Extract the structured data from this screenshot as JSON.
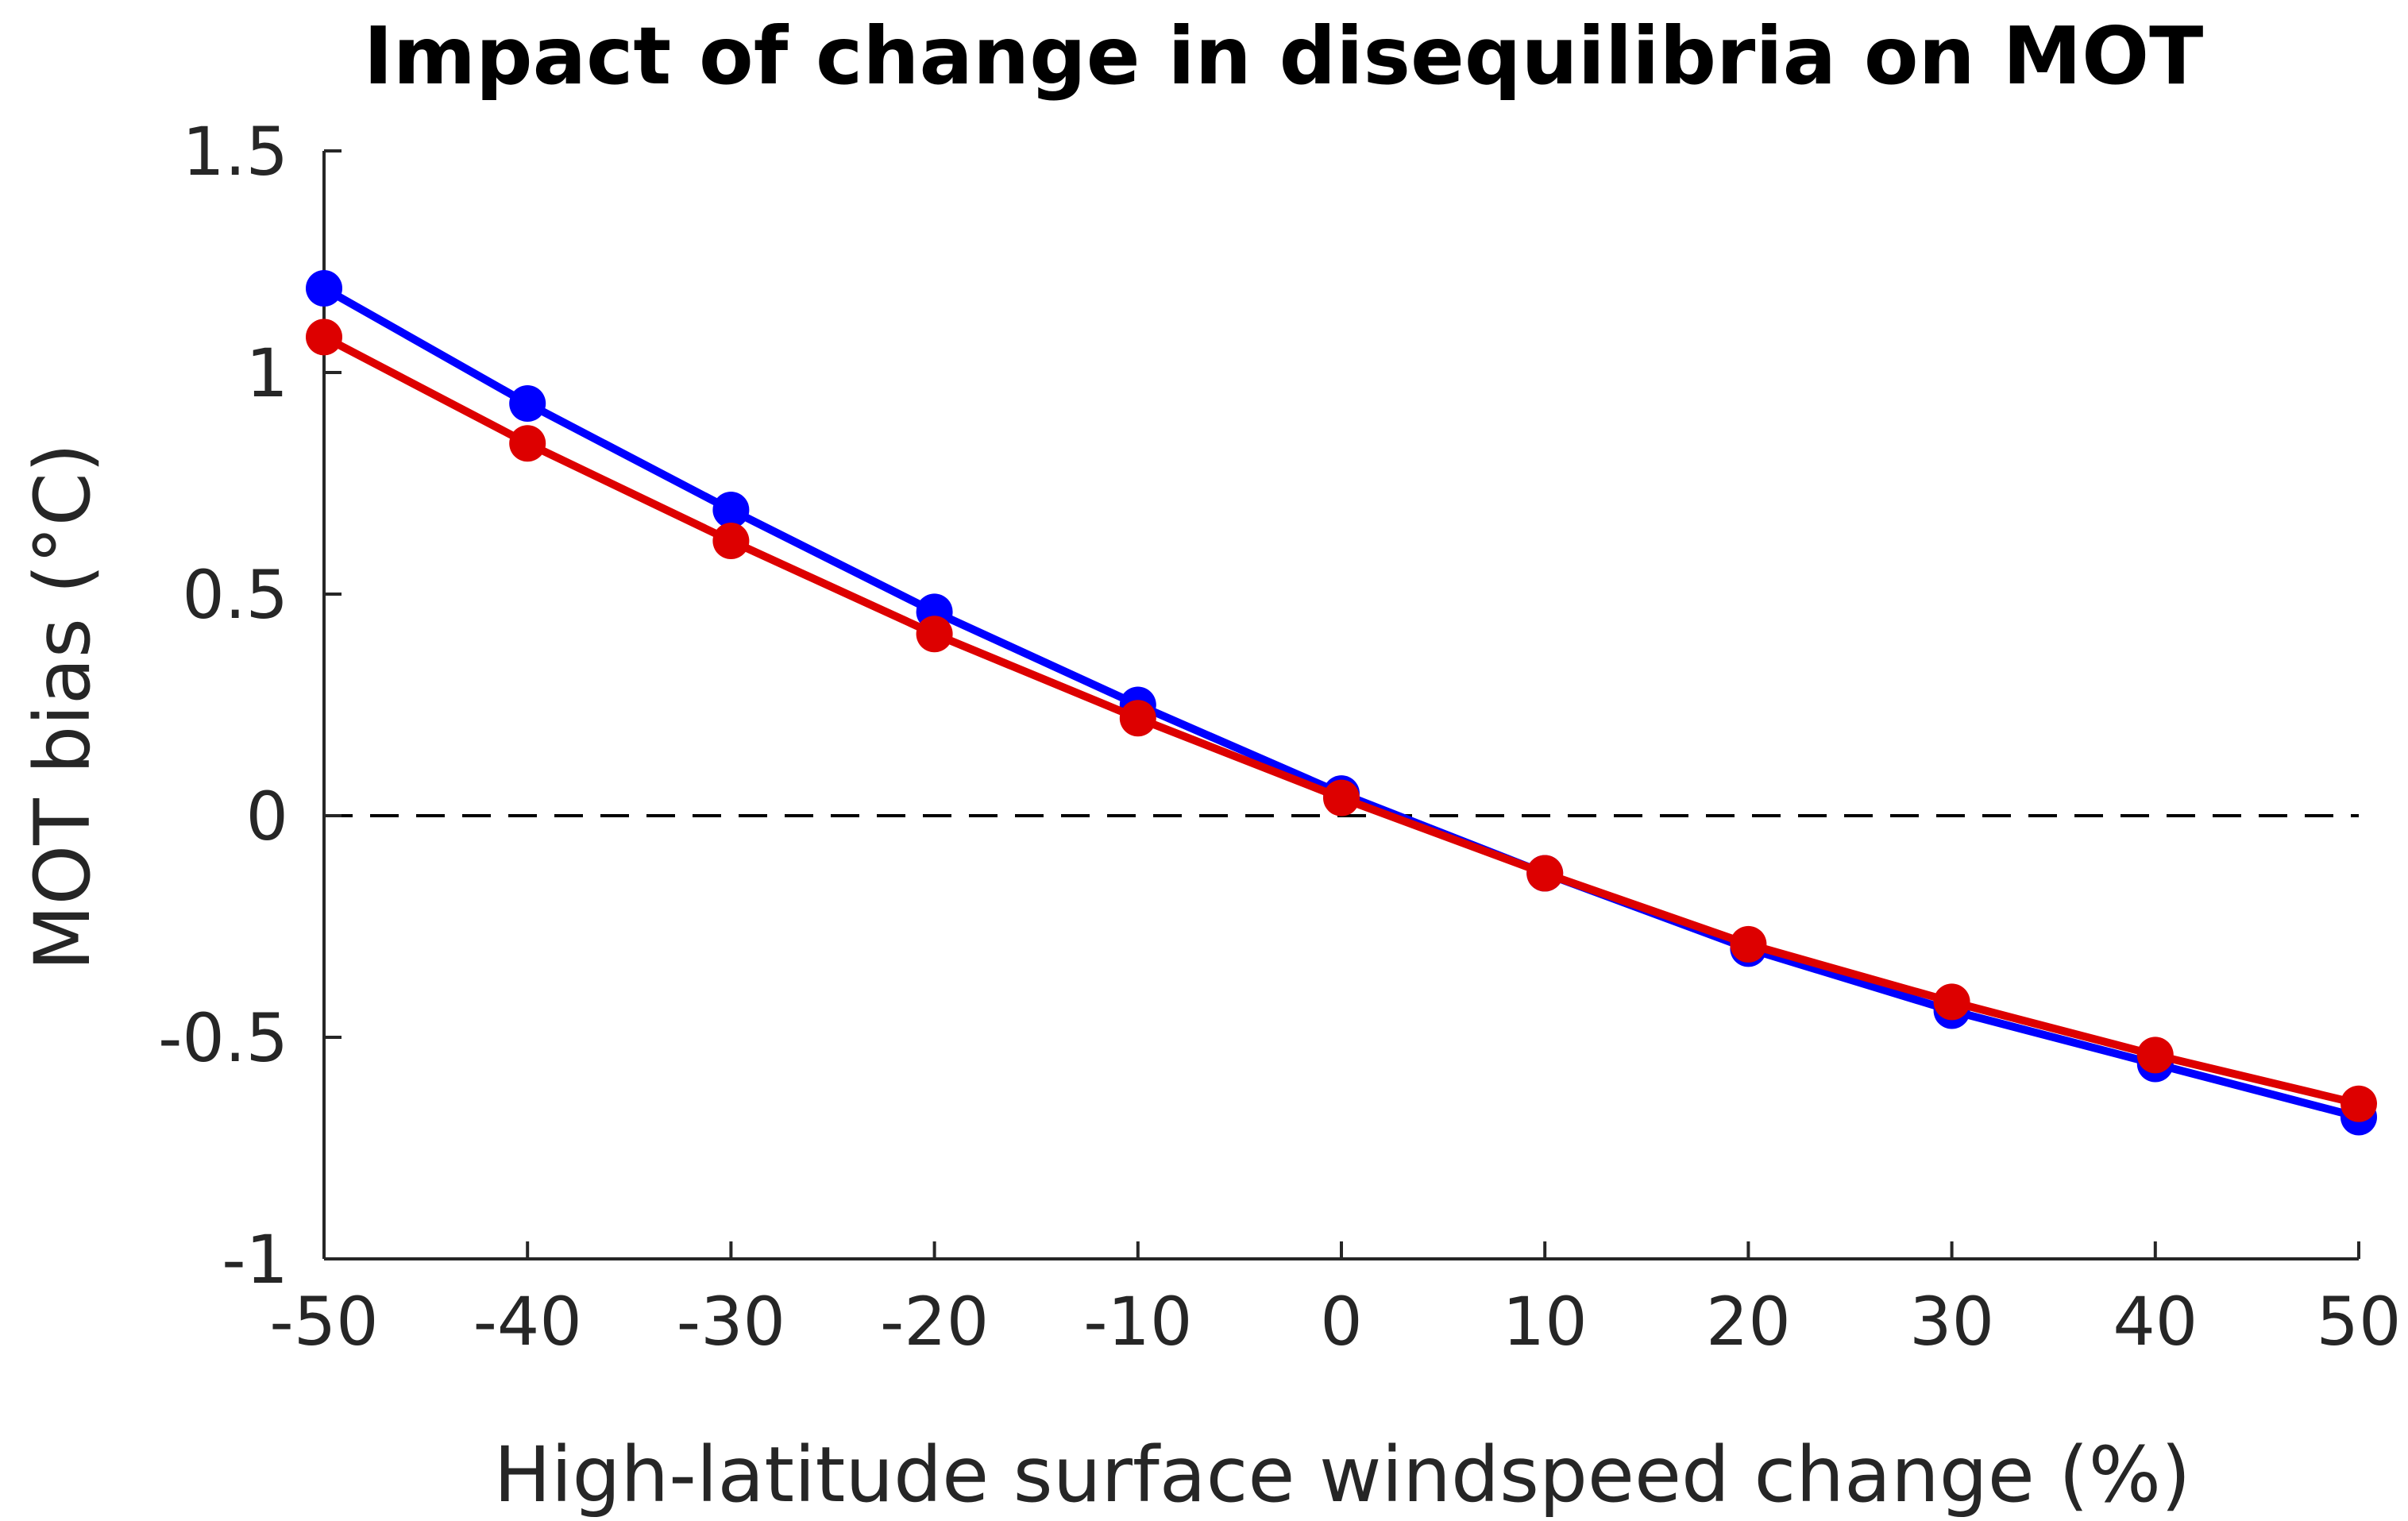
{
  "chart_data": {
    "type": "line",
    "title": "Impact of change in disequilibria on MOT",
    "xlabel": "High-latitude surface windspeed change (%)",
    "ylabel": "MOT bias (°C)",
    "x": [
      -50,
      -40,
      -30,
      -20,
      -10,
      0,
      10,
      20,
      30,
      40,
      50
    ],
    "xticks": [
      "-50",
      "-40",
      "-30",
      "-20",
      "-10",
      "0",
      "10",
      "20",
      "30",
      "40",
      "50"
    ],
    "yticks": [
      "1.5",
      "1",
      "0.5",
      "0",
      "-0.5",
      "-1"
    ],
    "xlim": [
      -50,
      50
    ],
    "ylim": [
      -1,
      1.5
    ],
    "reference_line": {
      "y": 0,
      "style": "dashed",
      "color": "#000000"
    },
    "grid": false,
    "legend": "none",
    "series": [
      {
        "color": "#0000FF",
        "values": [
          1.19,
          0.93,
          0.69,
          0.46,
          0.25,
          0.05,
          -0.13,
          -0.3,
          -0.44,
          -0.56,
          -0.68
        ]
      },
      {
        "color": "#DD0000",
        "values": [
          1.08,
          0.84,
          0.62,
          0.41,
          0.22,
          0.04,
          -0.13,
          -0.29,
          -0.42,
          -0.54,
          -0.65
        ]
      }
    ]
  }
}
